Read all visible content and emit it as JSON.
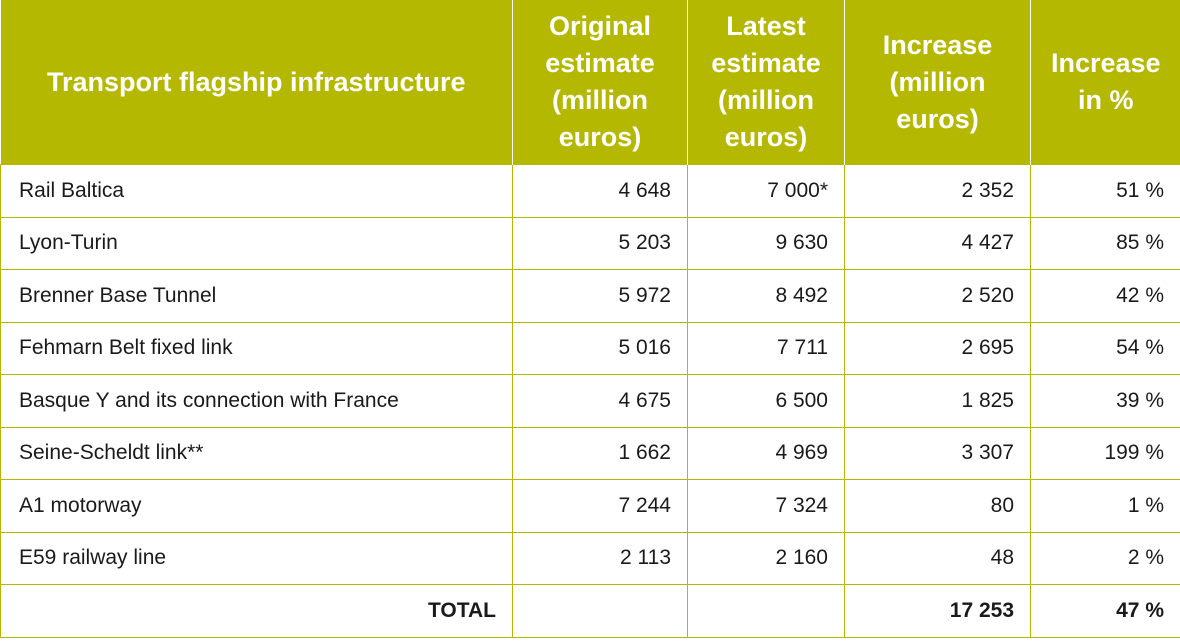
{
  "table": {
    "headers": [
      "Transport flagship infrastructure",
      "Original estimate (million euros)",
      "Latest estimate (million euros)",
      "Increase (million euros)",
      "Increase in %"
    ],
    "rows": [
      [
        "Rail Baltica",
        "4 648",
        "7 000*",
        "2 352",
        "51 %"
      ],
      [
        "Lyon-Turin",
        "5 203",
        "9 630",
        "4 427",
        "85 %"
      ],
      [
        "Brenner Base Tunnel",
        "5 972",
        "8 492",
        "2 520",
        "42 %"
      ],
      [
        "Fehmarn Belt fixed link",
        "5 016",
        "7 711",
        "2 695",
        "54 %"
      ],
      [
        "Basque Y and its connection with France",
        "4 675",
        "6 500",
        "1 825",
        "39 %"
      ],
      [
        "Seine-Scheldt link**",
        "1 662",
        "4 969",
        "3 307",
        "199 %"
      ],
      [
        "A1 motorway",
        "7 244",
        "7 324",
        "80",
        "1 %"
      ],
      [
        "E59 railway line",
        "2 113",
        "2 160",
        "48",
        "2 %"
      ]
    ],
    "total": [
      "TOTAL",
      "",
      "",
      "17 253",
      "47 %"
    ]
  },
  "colors": {
    "header_background": "#b5b800",
    "header_text": "#ffffff",
    "grid_lines": "#b5b800"
  }
}
